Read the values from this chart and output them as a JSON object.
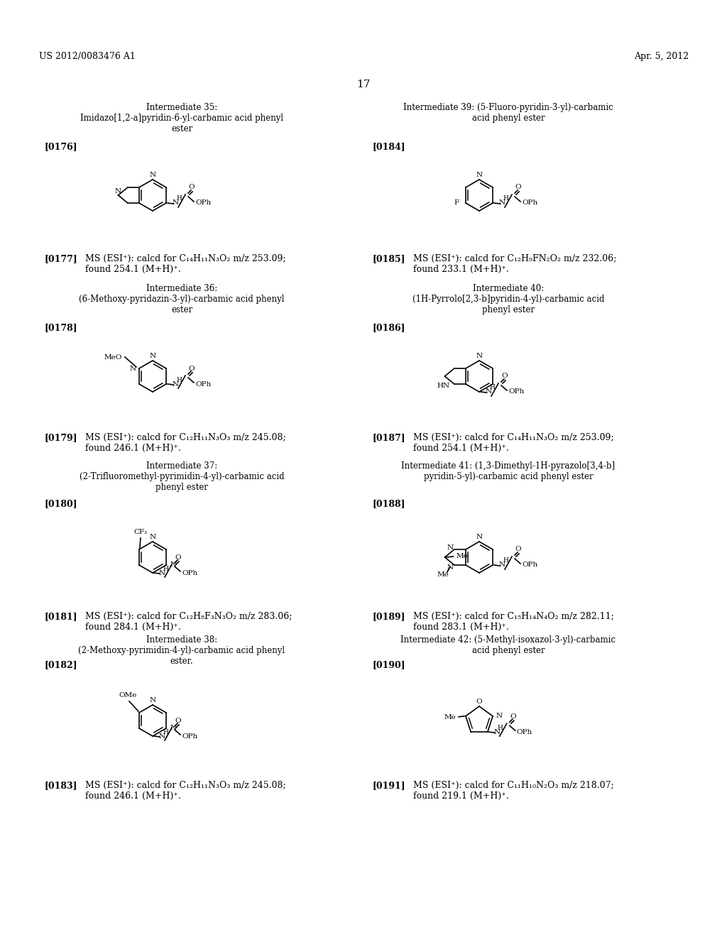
{
  "page_number": "17",
  "patent_number": "US 2012/0083476 A1",
  "patent_date": "Apr. 5, 2012",
  "background_color": "#ffffff",
  "text_color": "#000000",
  "entries": [
    {
      "id": "35",
      "ref": "[0176]",
      "title1": "Intermediate 35:",
      "title2": "Imidazo[1,2-a]pyridin-6-yl-carbamic acid phenyl",
      "title3": "ester",
      "ms_ref": "[0177]",
      "ms_line1": "MS (ESI⁺): calcd for C₁₄H₁₁N₃O₂ m/z 253.09;",
      "ms_line2": "found 254.1 (M+H)⁺.",
      "col": 0,
      "row": 0
    },
    {
      "id": "39",
      "ref": "[0184]",
      "title1": "Intermediate 39: (5-Fluoro-pyridin-3-yl)-carbamic",
      "title2": "acid phenyl ester",
      "title3": "",
      "ms_ref": "[0185]",
      "ms_line1": "MS (ESI⁺): calcd for C₁₂H₉FN₂O₂ m/z 232.06;",
      "ms_line2": "found 233.1 (M+H)⁺.",
      "col": 1,
      "row": 0
    },
    {
      "id": "36",
      "ref": "[0178]",
      "title1": "Intermediate 36:",
      "title2": "(6-Methoxy-pyridazin-3-yl)-carbamic acid phenyl",
      "title3": "ester",
      "ms_ref": "[0179]",
      "ms_line1": "MS (ESI⁺): calcd for C₁₂H₁₁N₃O₃ m/z 245.08;",
      "ms_line2": "found 246.1 (M+H)⁺.",
      "col": 0,
      "row": 1
    },
    {
      "id": "40",
      "ref": "[0186]",
      "title1": "Intermediate 40:",
      "title2": "(1H-Pyrrolo[2,3-b]pyridin-4-yl)-carbamic acid",
      "title3": "phenyl ester",
      "ms_ref": "[0187]",
      "ms_line1": "MS (ESI⁺): calcd for C₁₄H₁₁N₃O₂ m/z 253.09;",
      "ms_line2": "found 254.1 (M+H)⁺.",
      "col": 1,
      "row": 1
    },
    {
      "id": "37",
      "ref": "[0180]",
      "title1": "Intermediate 37:",
      "title2": "(2-Trifluoromethyl-pyrimidin-4-yl)-carbamic acid",
      "title3": "phenyl ester",
      "ms_ref": "[0181]",
      "ms_line1": "MS (ESI⁺): calcd for C₁₂H₈F₃N₃O₂ m/z 283.06;",
      "ms_line2": "found 284.1 (M+H)⁺.",
      "col": 0,
      "row": 2
    },
    {
      "id": "41",
      "ref": "[0188]",
      "title1": "Intermediate 41: (1,3-Dimethyl-1H-pyrazolo[3,4-b]",
      "title2": "pyridin-5-yl)-carbamic acid phenyl ester",
      "title3": "",
      "ms_ref": "[0189]",
      "ms_line1": "MS (ESI⁺): calcd for C₁₅H₁₄N₄O₂ m/z 282.11;",
      "ms_line2": "found 283.1 (M+H)⁺.",
      "col": 1,
      "row": 2
    },
    {
      "id": "38",
      "ref": "[0182]",
      "title1": "Intermediate 38:",
      "title2": "(2-Methoxy-pyrimidin-4-yl)-carbamic acid phenyl",
      "title3": "ester.",
      "ms_ref": "[0183]",
      "ms_line1": "MS (ESI⁺): calcd for C₁₂H₁₁N₃O₃ m/z 245.08;",
      "ms_line2": "found 246.1 (M+H)⁺.",
      "col": 0,
      "row": 3
    },
    {
      "id": "42",
      "ref": "[0190]",
      "title1": "Intermediate 42: (5-Methyl-isoxazol-3-yl)-carbamic",
      "title2": "acid phenyl ester",
      "title3": "",
      "ms_ref": "[0191]",
      "ms_line1": "MS (ESI⁺): calcd for C₁₁H₁₀N₂O₃ m/z 218.07;",
      "ms_line2": "found 219.1 (M+H)⁺.",
      "col": 1,
      "row": 3
    }
  ]
}
